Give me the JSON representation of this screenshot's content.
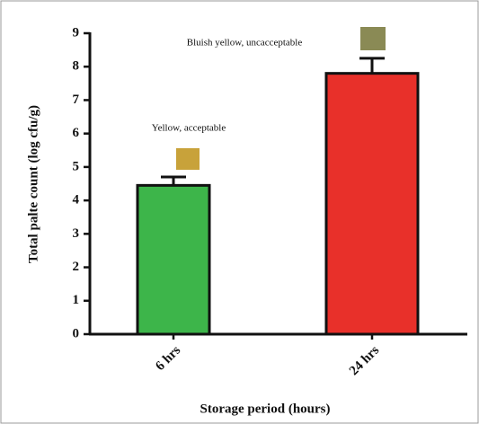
{
  "chart_data": {
    "type": "bar",
    "categories": [
      "6 hrs",
      "24 hrs"
    ],
    "values": [
      4.45,
      7.8
    ],
    "errors": [
      0.25,
      0.45
    ],
    "colors": [
      "#3db54a",
      "#e8302a"
    ],
    "ylabel": "Total palte count (log cfu/g)",
    "xlabel": "Storage period (hours)",
    "annotations": [
      "Yellow, acceptable",
      "Bluish yellow, uncacceptable"
    ],
    "ylim": [
      0,
      9
    ],
    "yticks": [
      0,
      1,
      2,
      3,
      4,
      5,
      6,
      7,
      8,
      9
    ],
    "grid": false
  }
}
